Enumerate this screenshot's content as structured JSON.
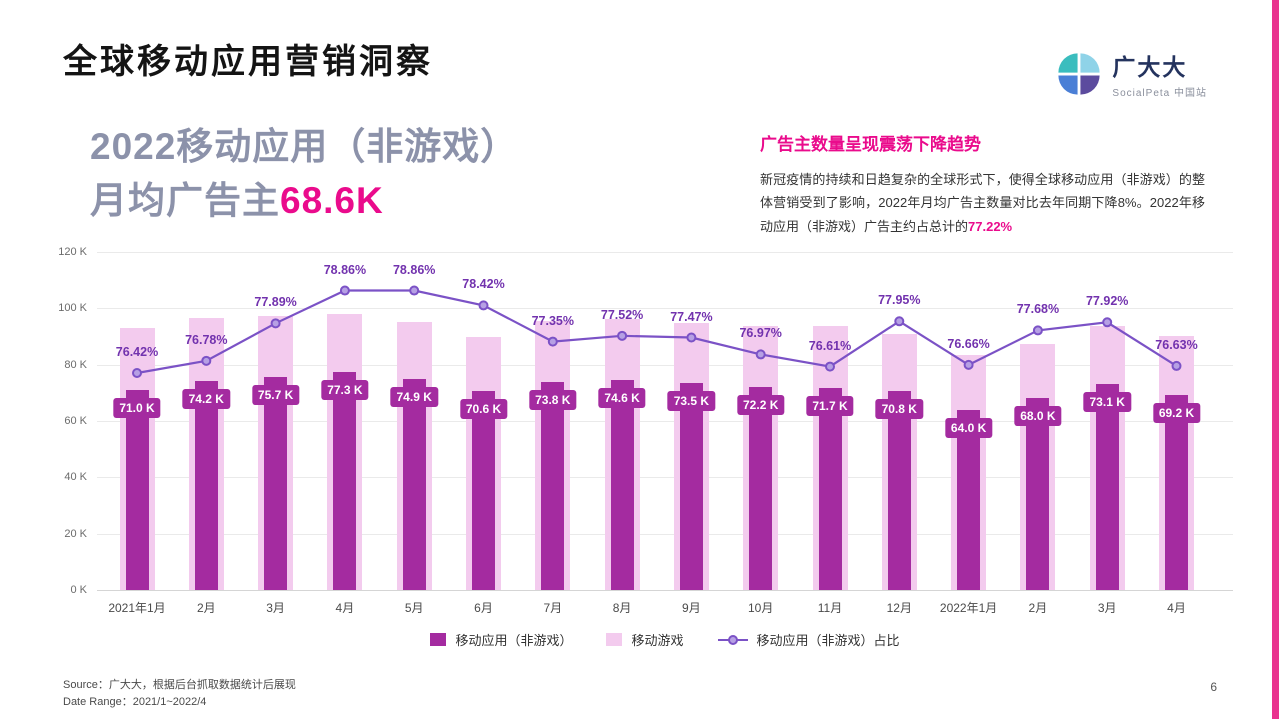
{
  "slide": {
    "title": "全球移动应用营销洞察",
    "page_number": "6"
  },
  "logo": {
    "brand": "广大大",
    "sub": "SocialPeta 中国站"
  },
  "headline": {
    "line1": "2022移动应用（非游戏）",
    "line2_prefix": "月均广告主",
    "line2_value": "68.6K"
  },
  "insight": {
    "title": "广告主数量呈现震荡下降趋势",
    "body_part1": "新冠疫情的持续和日趋复杂的全球形式下，使得全球移动应用（非游戏）的整体营销受到了影响，2022年月均广告主数量对比去年同期下降8%。2022年移动应用（非游戏）广告主约占总计的",
    "highlight": "77.22%"
  },
  "footer": {
    "source": "Source：广大大，根据后台抓取数据统计后展现",
    "date_range": "Date Range：2021/1~2022/4"
  },
  "colors": {
    "bar_nongame": "#a42ba0",
    "bar_game": "#f3cbee",
    "line": "#7b52c6",
    "line_marker_fill": "#b6a0e4",
    "accent_magenta": "#ea0b8c",
    "edge_strip": "#e9338f",
    "pct_label": "#7232ae"
  },
  "chart_data": {
    "type": "bar+line combo",
    "categories": [
      "2021年1月",
      "2月",
      "3月",
      "4月",
      "5月",
      "6月",
      "7月",
      "8月",
      "9月",
      "10月",
      "11月",
      "12月",
      "2022年1月",
      "2月",
      "3月",
      "4月"
    ],
    "series": [
      {
        "name": "移动应用（非游戏）",
        "type": "bar",
        "values": [
          71.0,
          74.2,
          75.7,
          77.3,
          74.9,
          70.6,
          73.8,
          74.6,
          73.5,
          72.2,
          71.7,
          70.8,
          64.0,
          68.0,
          73.1,
          69.2
        ],
        "labels": [
          "71.0 K",
          "74.2 K",
          "75.7 K",
          "77.3 K",
          "74.9 K",
          "70.6 K",
          "73.8 K",
          "74.6 K",
          "73.5 K",
          "72.2 K",
          "71.7 K",
          "70.8 K",
          "64.0 K",
          "68.0 K",
          "73.1 K",
          "69.2 K"
        ]
      },
      {
        "name": "移动游戏",
        "type": "bar",
        "values": [
          92.9,
          96.6,
          97.2,
          98.0,
          95.0,
          90.0,
          95.4,
          96.2,
          94.9,
          93.8,
          93.6,
          90.8,
          83.5,
          87.5,
          93.8,
          90.3
        ]
      },
      {
        "name": "移动应用（非游戏）占比",
        "type": "line",
        "values": [
          76.42,
          76.78,
          77.89,
          78.86,
          78.86,
          78.42,
          77.35,
          77.52,
          77.47,
          76.97,
          76.61,
          77.95,
          76.66,
          77.68,
          77.92,
          76.63
        ],
        "labels": [
          "76.42%",
          "76.78%",
          "77.89%",
          "78.86%",
          "78.86%",
          "78.42%",
          "77.35%",
          "77.52%",
          "77.47%",
          "76.97%",
          "76.61%",
          "77.95%",
          "76.66%",
          "77.68%",
          "77.92%",
          "76.63%"
        ]
      }
    ],
    "y_ticks": [
      "120 K",
      "100 K",
      "80 K",
      "60 K",
      "40 K",
      "20 K",
      "0 K"
    ],
    "ylim": [
      0,
      120
    ],
    "line_ylim": [
      70,
      80
    ],
    "grid": "horizontal",
    "legend_position": "bottom",
    "legend": [
      {
        "label": "移动应用（非游戏）",
        "swatch": "bar",
        "color": "#a42ba0"
      },
      {
        "label": "移动游戏",
        "swatch": "bar",
        "color": "#f3cbee"
      },
      {
        "label": "移动应用（非游戏）占比",
        "swatch": "line",
        "color": "#7b52c6"
      }
    ]
  }
}
